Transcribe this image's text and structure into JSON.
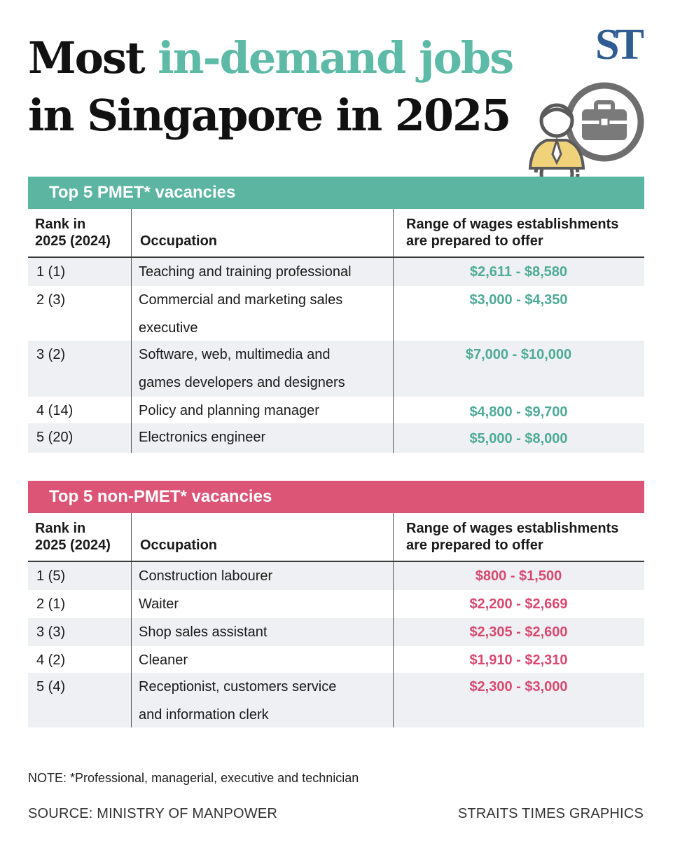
{
  "title": {
    "part1": "Most ",
    "highlight": "in-demand jobs",
    "line2": "in Singapore in 2025"
  },
  "logo": {
    "text": "ST"
  },
  "illustration": {
    "icon": "worker-briefcase-gear-icon"
  },
  "headers": {
    "rank_line1": "Rank in",
    "rank_line2": "2025 (2024)",
    "occupation": "Occupation",
    "wage_line1": "Range of wages establishments",
    "wage_line2": "are prepared to offer"
  },
  "pmet": {
    "label": "Top 5 PMET* vacancies",
    "rows": [
      {
        "rank": "1 (1)",
        "occupation_lines": [
          "Teaching and training professional"
        ],
        "wage": "$2,611 - $8,580"
      },
      {
        "rank": "2 (3)",
        "occupation_lines": [
          "Commercial and marketing sales",
          "executive"
        ],
        "wage": "$3,000 - $4,350"
      },
      {
        "rank": "3 (2)",
        "occupation_lines": [
          "Software, web, multimedia and",
          "games developers and designers"
        ],
        "wage": "$7,000 - $10,000"
      },
      {
        "rank": "4 (14)",
        "occupation_lines": [
          "Policy and planning manager"
        ],
        "wage": "$4,800 - $9,700"
      },
      {
        "rank": "5 (20)",
        "occupation_lines": [
          "Electronics engineer"
        ],
        "wage": "$5,000 - $8,000"
      }
    ]
  },
  "nonpmet": {
    "label": "Top 5 non-PMET* vacancies",
    "rows": [
      {
        "rank": "1 (5)",
        "occupation_lines": [
          "Construction labourer"
        ],
        "wage": "$800 - $1,500"
      },
      {
        "rank": "2 (1)",
        "occupation_lines": [
          "Waiter"
        ],
        "wage": "$2,200 - $2,669"
      },
      {
        "rank": "3 (3)",
        "occupation_lines": [
          "Shop sales assistant"
        ],
        "wage": "$2,305 - $2,600"
      },
      {
        "rank": "4 (2)",
        "occupation_lines": [
          "Cleaner"
        ],
        "wage": "$1,910 - $2,310"
      },
      {
        "rank": "5 (4)",
        "occupation_lines": [
          "Receptionist, customers service",
          "and information clerk"
        ],
        "wage": "$2,300 - $3,000"
      }
    ]
  },
  "note": "NOTE: *Professional, managerial, executive and technician",
  "source": "SOURCE: MINISTRY OF MANPOWER",
  "credit": "STRAITS TIMES GRAPHICS",
  "colors": {
    "teal": "#5bb5a1",
    "pink": "#dc5577",
    "logo_blue": "#2f5d93"
  }
}
